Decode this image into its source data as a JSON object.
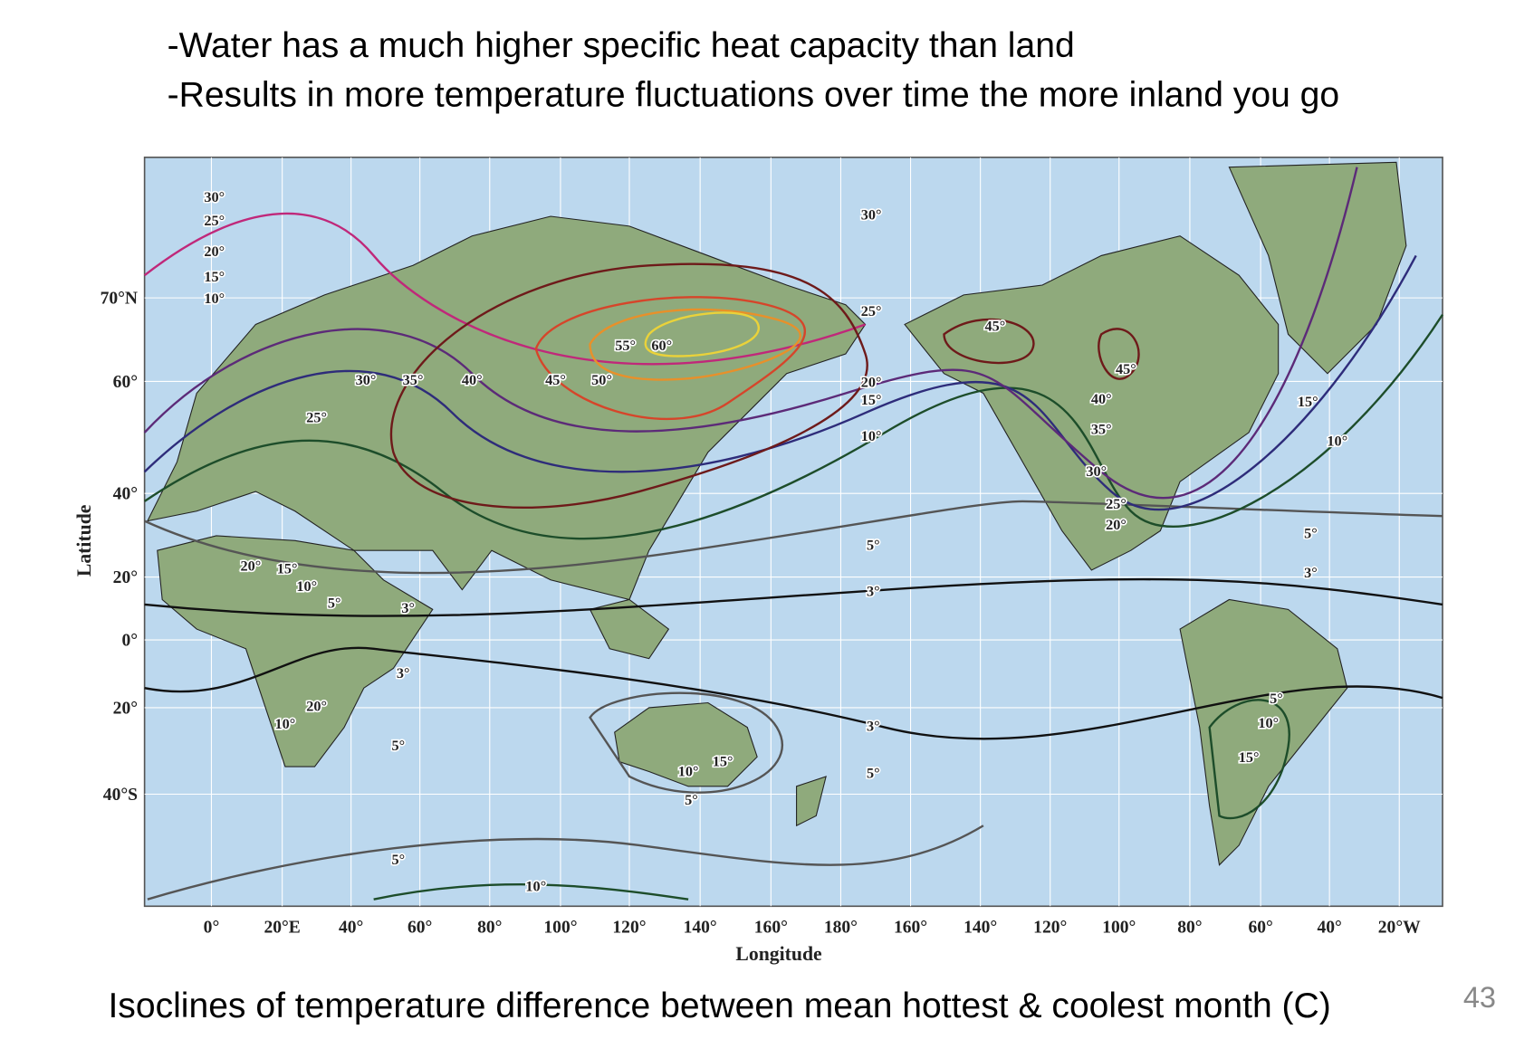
{
  "bullets": [
    "-Water has a much higher specific heat capacity than land",
    "-Results in more temperature fluctuations over time the more inland you go"
  ],
  "map": {
    "y_axis_title": "Latitude",
    "x_axis_title": "Longitude",
    "lat_labels": [
      "70°N",
      "60°",
      "40°",
      "20°",
      "0°",
      "20°",
      "40°S"
    ],
    "lon_labels": [
      "0°",
      "20°E",
      "40°",
      "60°",
      "80°",
      "100°",
      "120°",
      "140°",
      "160°",
      "180°",
      "160°",
      "140°",
      "120°",
      "100°",
      "80°",
      "60°",
      "40°",
      "20°W"
    ],
    "isocline_labels": [
      "30°",
      "25°",
      "20°",
      "15°",
      "10°",
      "30°",
      "25°",
      "45°",
      "55°",
      "60°",
      "30°",
      "35°",
      "40°",
      "45°",
      "50°",
      "20°",
      "15°",
      "10°",
      "45°",
      "40°",
      "35°",
      "25°",
      "15°",
      "10°",
      "30°",
      "25°",
      "20°",
      "5°",
      "5°",
      "20°",
      "15°",
      "10°",
      "5°",
      "3°",
      "3°",
      "3°",
      "3°",
      "20°",
      "10°",
      "5°",
      "10°",
      "3°",
      "5°",
      "10°",
      "15°",
      "15°",
      "5°",
      "5°",
      "5°",
      "10°"
    ]
  },
  "caption": "Isoclines of temperature difference between mean hottest & coolest month (C)",
  "page_number": "43"
}
